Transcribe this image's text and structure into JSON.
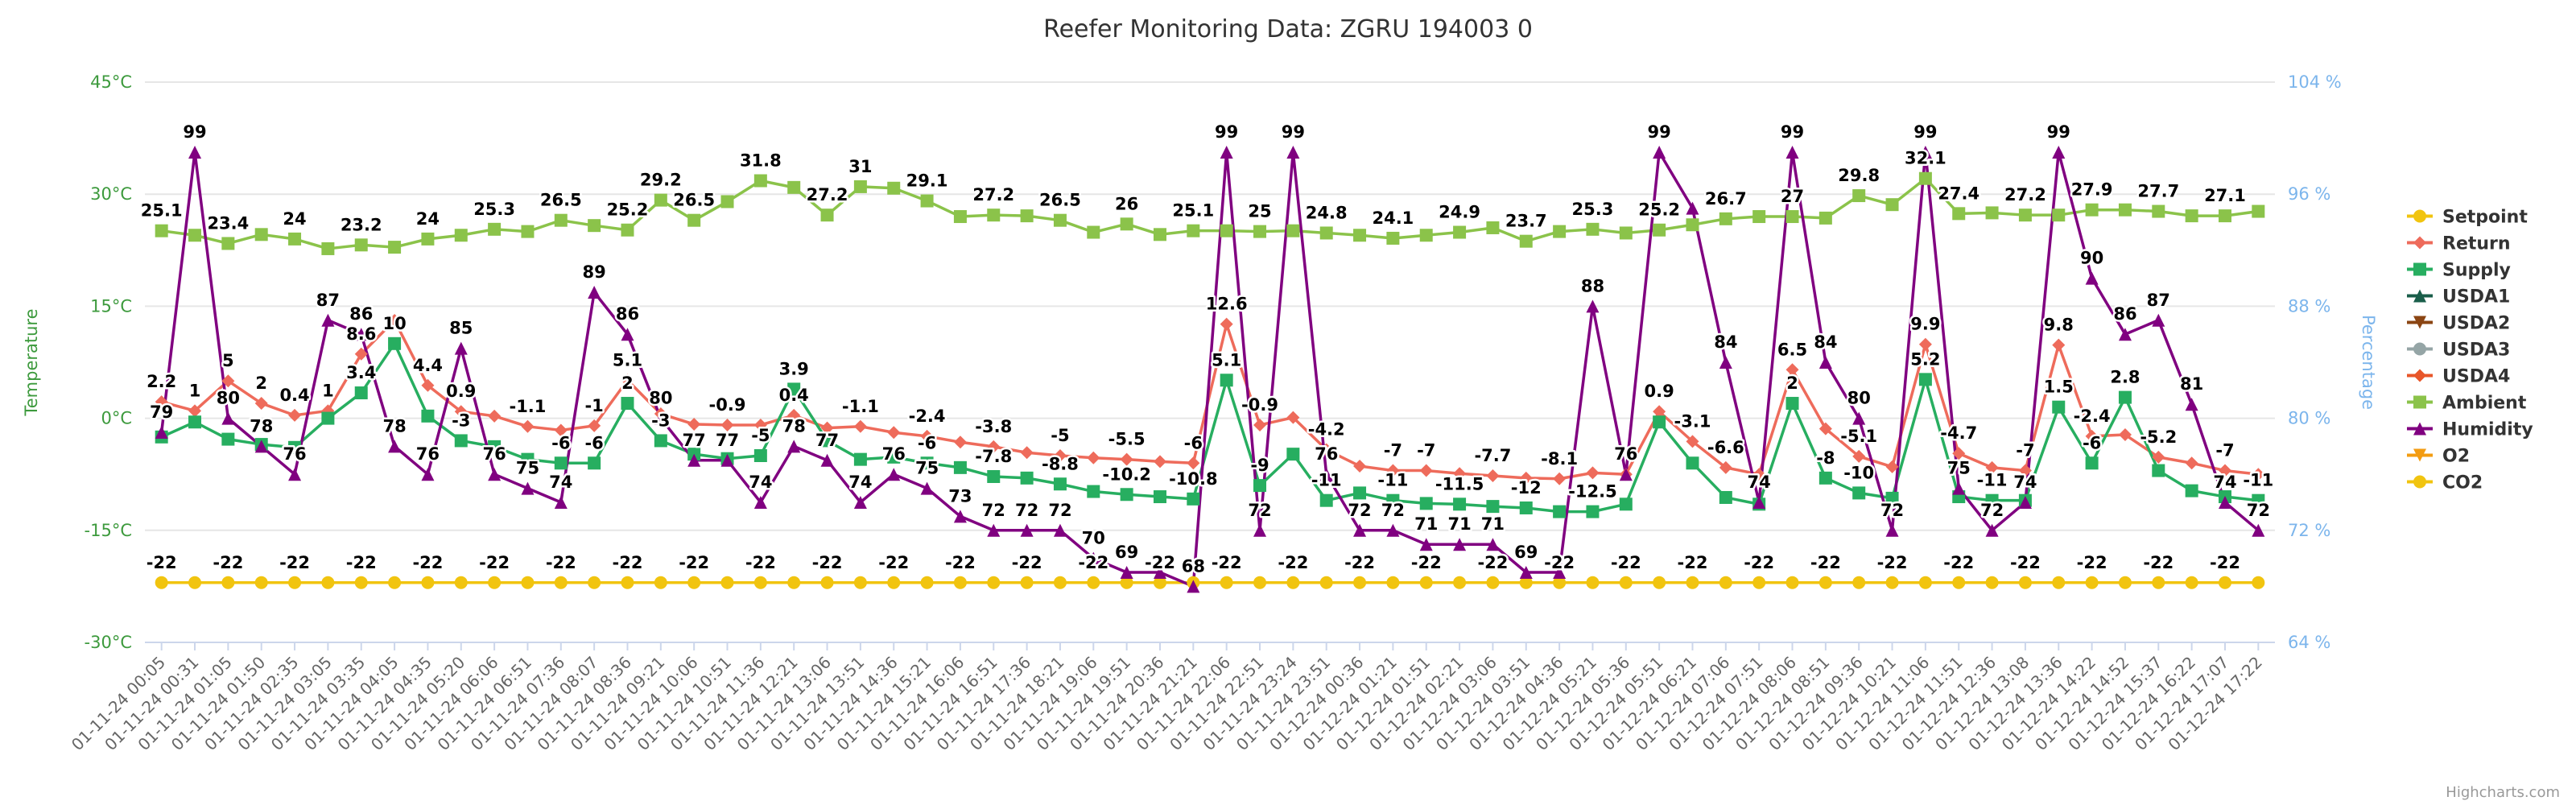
{
  "chart_data": {
    "type": "line",
    "title": "Reefer Monitoring Data: ZGRU 194003 0",
    "y_label": "Temperature",
    "y2_label": "Percentage",
    "credit": "Highcharts.com",
    "legend": "right",
    "grid": true,
    "ylim": [
      -30,
      45
    ],
    "yticks": [
      {
        "value": -30,
        "label": "-30°C"
      },
      {
        "value": -15,
        "label": "-15°C"
      },
      {
        "value": 0,
        "label": "0°C"
      },
      {
        "value": 15,
        "label": "15°C"
      },
      {
        "value": 30,
        "label": "30°C"
      },
      {
        "value": 45,
        "label": "45°C"
      }
    ],
    "y2lim": [
      64,
      104
    ],
    "y2ticks": [
      {
        "value": 64,
        "label": "64 %"
      },
      {
        "value": 72,
        "label": "72 %"
      },
      {
        "value": 80,
        "label": "80 %"
      },
      {
        "value": 88,
        "label": "88 %"
      },
      {
        "value": 96,
        "label": "96 %"
      },
      {
        "value": 104,
        "label": "104 %"
      }
    ],
    "categories": [
      "01-11-24 00:05",
      "01-11-24 00:31",
      "01-11-24 01:05",
      "01-11-24 01:50",
      "01-11-24 02:35",
      "01-11-24 03:05",
      "01-11-24 03:35",
      "01-11-24 04:05",
      "01-11-24 04:35",
      "01-11-24 05:20",
      "01-11-24 06:06",
      "01-11-24 06:51",
      "01-11-24 07:36",
      "01-11-24 08:07",
      "01-11-24 08:36",
      "01-11-24 09:21",
      "01-11-24 10:06",
      "01-11-24 10:51",
      "01-11-24 11:36",
      "01-11-24 12:21",
      "01-11-24 13:06",
      "01-11-24 13:51",
      "01-11-24 14:36",
      "01-11-24 15:21",
      "01-11-24 16:06",
      "01-11-24 16:51",
      "01-11-24 17:36",
      "01-11-24 18:21",
      "01-11-24 19:06",
      "01-11-24 19:51",
      "01-11-24 20:36",
      "01-11-24 21:21",
      "01-11-24 22:06",
      "01-11-24 22:51",
      "01-11-24 23:24",
      "01-11-24 23:51",
      "01-12-24 00:36",
      "01-12-24 01:21",
      "01-12-24 01:51",
      "01-12-24 02:21",
      "01-12-24 03:06",
      "01-12-24 03:51",
      "01-12-24 04:36",
      "01-12-24 05:21",
      "01-12-24 05:36",
      "01-12-24 05:51",
      "01-12-24 06:21",
      "01-12-24 07:06",
      "01-12-24 07:51",
      "01-12-24 08:06",
      "01-12-24 08:51",
      "01-12-24 09:36",
      "01-12-24 10:21",
      "01-12-24 11:06",
      "01-12-24 11:51",
      "01-12-24 12:36",
      "01-12-24 13:08",
      "01-12-24 13:36",
      "01-12-24 14:22",
      "01-12-24 14:52",
      "01-12-24 15:37",
      "01-12-24 16:22",
      "01-12-24 17:07",
      "01-12-24 17:22"
    ],
    "series": [
      {
        "name": "Setpoint",
        "color": "#f1c40f",
        "symbol": "circle",
        "labels": true,
        "values": [
          -22,
          -22,
          -22,
          -22,
          -22,
          -22,
          -22,
          -22,
          -22,
          -22,
          -22,
          -22,
          -22,
          -22,
          -22,
          -22,
          -22,
          -22,
          -22,
          -22,
          -22,
          -22,
          -22,
          -22,
          -22,
          -22,
          -22,
          -22,
          -22,
          -22,
          -22,
          -22,
          -22,
          -22,
          -22,
          -22,
          -22,
          -22,
          -22,
          -22,
          -22,
          -22,
          -22,
          -22,
          -22,
          -22,
          -22,
          -22,
          -22,
          -22,
          -22,
          -22,
          -22,
          -22,
          -22,
          -22,
          -22,
          -22,
          -22,
          -22,
          -22,
          -22,
          -22,
          -22
        ]
      },
      {
        "name": "Return",
        "color": "#ee6b5b",
        "symbol": "diamond",
        "labels": true,
        "values": [
          2.2,
          1,
          5,
          2,
          0.4,
          1,
          8.6,
          13.1,
          4.4,
          0.9,
          0.3,
          -1.1,
          -1.6,
          -1,
          5.1,
          0.6,
          -0.8,
          -0.9,
          -0.9,
          0.4,
          -1.3,
          -1.1,
          -1.9,
          -2.4,
          -3.2,
          -3.8,
          -4.6,
          -5,
          -5.3,
          -5.5,
          -5.8,
          -6,
          12.6,
          -0.9,
          0.1,
          -4.2,
          -6.4,
          -7,
          -7,
          -7.4,
          -7.7,
          -8,
          -8.1,
          -7.3,
          -7.5,
          0.9,
          -3.1,
          -6.6,
          -7.5,
          6.5,
          -1.4,
          -5.1,
          -6.5,
          9.9,
          -4.7,
          -6.6,
          -7,
          9.8,
          -2.4,
          -2.2,
          -5.2,
          -6,
          -7,
          -7.5
        ]
      },
      {
        "name": "Supply",
        "color": "#27ae60",
        "symbol": "square",
        "labels": true,
        "values": [
          -2.5,
          -0.5,
          -2.8,
          -3.5,
          -3.9,
          0,
          3.4,
          10,
          0.3,
          -3,
          -3.8,
          -5.5,
          -6,
          -6,
          2,
          -3,
          -4.8,
          -5.4,
          -5,
          3.9,
          -3,
          -5.5,
          -5.2,
          -6,
          -6.6,
          -7.8,
          -8,
          -8.8,
          -9.8,
          -10.2,
          -10.5,
          -10.8,
          5.1,
          -9,
          -4.8,
          -11,
          -10,
          -11,
          -11.4,
          -11.5,
          -11.8,
          -12,
          -12.5,
          -12.5,
          -11.5,
          -0.5,
          -6,
          -10.6,
          -11.5,
          2,
          -8,
          -10,
          -10.7,
          5.2,
          -10.5,
          -11,
          -11,
          1.5,
          -6,
          2.8,
          -7,
          -9.7,
          -10.5,
          -11
        ]
      },
      {
        "name": "USDA1",
        "color": "#1a5e4a",
        "symbol": "triangle",
        "labels": true,
        "values": [
          null,
          null,
          null,
          null,
          null,
          null,
          null,
          null,
          null,
          null,
          null,
          null,
          null,
          null,
          null,
          null,
          null,
          null,
          null,
          null,
          null,
          null,
          null,
          null,
          null,
          null,
          null,
          null,
          null,
          null,
          null,
          null,
          null,
          null,
          null,
          null,
          null,
          null,
          null,
          null,
          null,
          null,
          null,
          null,
          null,
          null,
          null,
          null,
          null,
          null,
          null,
          null,
          null,
          null,
          null,
          null,
          null,
          null,
          null,
          null,
          null,
          null,
          null,
          null
        ]
      },
      {
        "name": "USDA2",
        "color": "#8b4513",
        "symbol": "triangle-down",
        "labels": true,
        "values": [
          null,
          null,
          null,
          null,
          null,
          null,
          null,
          null,
          null,
          null,
          null,
          null,
          null,
          null,
          null,
          null,
          null,
          null,
          null,
          null,
          null,
          null,
          null,
          null,
          null,
          null,
          null,
          null,
          null,
          null,
          null,
          null,
          null,
          null,
          null,
          null,
          null,
          null,
          null,
          null,
          null,
          null,
          null,
          null,
          null,
          null,
          null,
          null,
          null,
          null,
          null,
          null,
          null,
          null,
          null,
          null,
          null,
          null,
          null,
          null,
          null,
          null,
          null,
          null
        ]
      },
      {
        "name": "USDA3",
        "color": "#95a5a6",
        "symbol": "circle",
        "labels": true,
        "values": [
          null,
          null,
          null,
          null,
          null,
          null,
          null,
          null,
          null,
          null,
          null,
          null,
          null,
          null,
          null,
          null,
          null,
          null,
          null,
          null,
          null,
          null,
          null,
          null,
          null,
          null,
          null,
          null,
          null,
          null,
          null,
          null,
          null,
          null,
          null,
          null,
          null,
          null,
          null,
          null,
          null,
          null,
          null,
          null,
          null,
          null,
          null,
          null,
          null,
          null,
          null,
          null,
          null,
          null,
          null,
          null,
          null,
          null,
          null,
          null,
          null,
          null,
          null,
          null
        ]
      },
      {
        "name": "USDA4",
        "color": "#e8562a",
        "symbol": "diamond",
        "labels": true,
        "values": [
          null,
          null,
          null,
          null,
          null,
          null,
          null,
          null,
          null,
          null,
          null,
          null,
          null,
          null,
          null,
          null,
          null,
          null,
          null,
          null,
          null,
          null,
          null,
          null,
          null,
          null,
          null,
          null,
          null,
          null,
          null,
          null,
          null,
          null,
          null,
          null,
          null,
          null,
          null,
          null,
          null,
          null,
          null,
          null,
          null,
          null,
          null,
          null,
          null,
          null,
          null,
          null,
          null,
          null,
          null,
          null,
          null,
          null,
          null,
          null,
          null,
          null,
          null,
          null
        ]
      },
      {
        "name": "Ambient",
        "color": "#8bc34a",
        "symbol": "square",
        "labels": true,
        "values": [
          25.1,
          24.5,
          23.4,
          24.6,
          24,
          22.7,
          23.2,
          22.9,
          24,
          24.5,
          25.3,
          25,
          26.5,
          25.8,
          25.2,
          29.2,
          26.5,
          29,
          31.8,
          30.9,
          27.2,
          31,
          30.8,
          29.1,
          27,
          27.2,
          27.1,
          26.5,
          24.9,
          26,
          24.6,
          25.1,
          25.1,
          25,
          25.1,
          24.8,
          24.5,
          24.1,
          24.5,
          24.9,
          25.5,
          23.7,
          25,
          25.3,
          24.8,
          25.2,
          25.9,
          26.7,
          27,
          27,
          26.8,
          29.8,
          28.6,
          32.1,
          27.4,
          27.5,
          27.2,
          27.2,
          27.9,
          27.9,
          27.7,
          27.1,
          27.1,
          27.7
        ]
      },
      {
        "name": "Humidity",
        "color": "#800080",
        "symbol": "triangle",
        "labels": true,
        "axis": "y2",
        "values": [
          79,
          99,
          80,
          78,
          76,
          87,
          86,
          78,
          76,
          85,
          76,
          75,
          74,
          89,
          86,
          80,
          77,
          77,
          74,
          78,
          77,
          74,
          76,
          75,
          73,
          72,
          72,
          72,
          70,
          69,
          69,
          68,
          99,
          72,
          99,
          76,
          72,
          72,
          71,
          71,
          71,
          69,
          69,
          88,
          76,
          99,
          95,
          84,
          74,
          99,
          84,
          80,
          72,
          99,
          75,
          72,
          74,
          99,
          90,
          86,
          87,
          81,
          74,
          72
        ]
      },
      {
        "name": "O2",
        "color": "#f39c12",
        "symbol": "triangle-down",
        "labels": true,
        "values": [
          null,
          null,
          null,
          null,
          null,
          null,
          null,
          null,
          null,
          null,
          null,
          null,
          null,
          null,
          null,
          null,
          null,
          null,
          null,
          null,
          null,
          null,
          null,
          null,
          null,
          null,
          null,
          null,
          null,
          null,
          null,
          null,
          null,
          null,
          null,
          null,
          null,
          null,
          null,
          null,
          null,
          null,
          null,
          null,
          null,
          null,
          null,
          null,
          null,
          null,
          null,
          null,
          null,
          null,
          null,
          null,
          null,
          null,
          null,
          null,
          null,
          null,
          null,
          null
        ]
      },
      {
        "name": "CO2",
        "color": "#f1c40f",
        "symbol": "circle",
        "labels": true,
        "values": [
          null,
          null,
          null,
          null,
          null,
          null,
          null,
          null,
          null,
          null,
          null,
          null,
          null,
          null,
          null,
          null,
          null,
          null,
          null,
          null,
          null,
          null,
          null,
          null,
          null,
          null,
          null,
          null,
          null,
          null,
          null,
          null,
          null,
          null,
          null,
          null,
          null,
          null,
          null,
          null,
          null,
          null,
          null,
          null,
          null,
          null,
          null,
          null,
          null,
          null,
          null,
          null,
          null,
          null,
          null,
          null,
          null,
          null,
          null,
          null,
          null,
          null,
          null,
          null
        ]
      }
    ]
  }
}
